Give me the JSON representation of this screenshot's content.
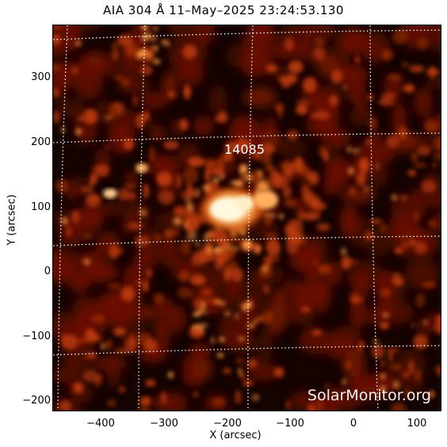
{
  "title": "AIA 304 Å 11–May–2025 23:24:53.130",
  "region_label": "14085",
  "watermark": "SolarMonitor.org",
  "x_axis": {
    "label": "X (arcsec)",
    "ticks": [
      "−400",
      "−300",
      "−200",
      "−100",
      "0",
      "100"
    ]
  },
  "y_axis": {
    "label": "Y (arcsec)",
    "ticks": [
      "300",
      "200",
      "100",
      "0",
      "−100",
      "−200"
    ]
  },
  "colors": {
    "background": "#140300",
    "emission_dim": "#6b1200",
    "emission_mid": "#c0410a",
    "emission_bright": "#ffb060",
    "core": "#fff6dc",
    "grid": "#ffffff"
  },
  "grid": true
}
